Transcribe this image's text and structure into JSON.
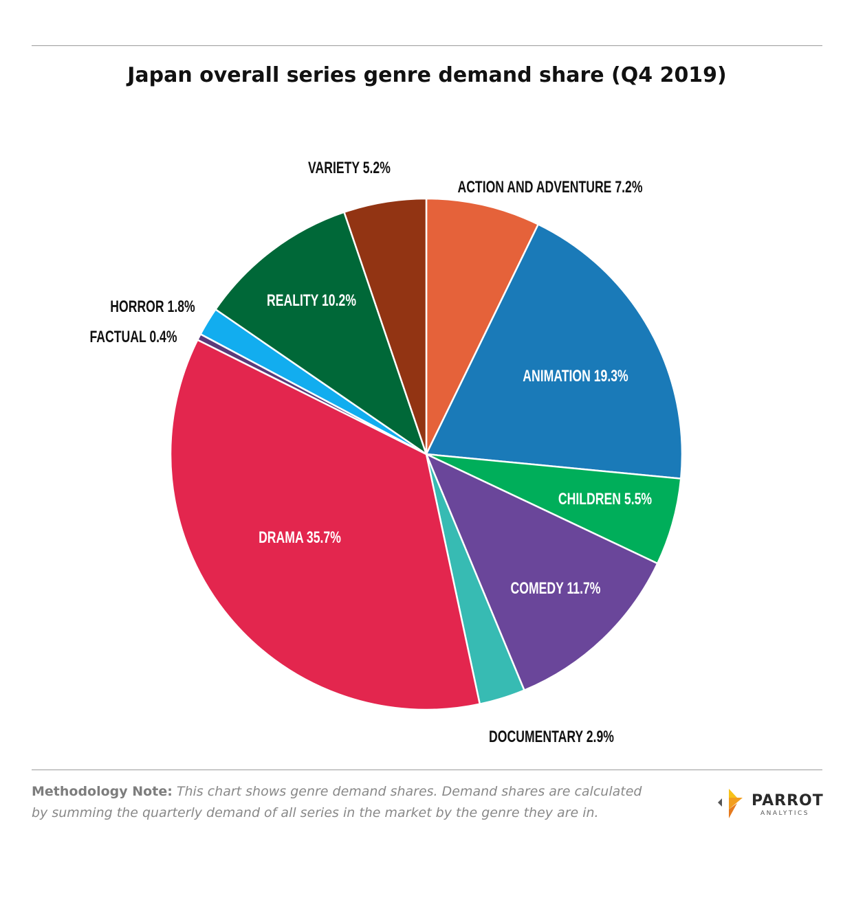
{
  "title": "Japan overall series genre demand share (Q4 2019)",
  "chart_data": {
    "type": "pie",
    "start_angle_deg": 0,
    "direction": "clockwise",
    "slices": [
      {
        "name": "ACTION AND ADVENTURE",
        "value": 7.2,
        "label": "ACTION AND ADVENTURE 7.2%",
        "color": "#E5623A",
        "label_position": "outside",
        "label_color": "#111111"
      },
      {
        "name": "ANIMATION",
        "value": 19.3,
        "label": "ANIMATION 19.3%",
        "color": "#1A7AB8",
        "label_position": "inside",
        "label_color": "#ffffff"
      },
      {
        "name": "CHILDREN",
        "value": 5.5,
        "label": "CHILDREN 5.5%",
        "color": "#00AE5A",
        "label_position": "inside",
        "label_color": "#ffffff"
      },
      {
        "name": "COMEDY",
        "value": 11.7,
        "label": "COMEDY 11.7%",
        "color": "#6A469A",
        "label_position": "inside",
        "label_color": "#ffffff"
      },
      {
        "name": "DOCUMENTARY",
        "value": 2.9,
        "label": "DOCUMENTARY 2.9%",
        "color": "#37BBB3",
        "label_position": "outside",
        "label_color": "#111111"
      },
      {
        "name": "DRAMA",
        "value": 35.7,
        "label": "DRAMA 35.7%",
        "color": "#E3264E",
        "label_position": "inside",
        "label_color": "#ffffff"
      },
      {
        "name": "FACTUAL",
        "value": 0.4,
        "label": "FACTUAL 0.4%",
        "color": "#5B3A7A",
        "label_position": "outside",
        "label_color": "#111111"
      },
      {
        "name": "HORROR",
        "value": 1.8,
        "label": "HORROR 1.8%",
        "color": "#12ADEF",
        "label_position": "outside",
        "label_color": "#111111"
      },
      {
        "name": "REALITY",
        "value": 10.2,
        "label": "REALITY 10.2%",
        "color": "#006838",
        "label_position": "inside",
        "label_color": "#ffffff"
      },
      {
        "name": "VARIETY",
        "value": 5.2,
        "label": "VARIETY 5.2%",
        "color": "#923413",
        "label_position": "outside",
        "label_color": "#111111"
      }
    ]
  },
  "footnote": {
    "lead": "Methodology Note:",
    "body": "This chart shows genre demand shares. Demand shares are calculated by summing the quarterly demand of all series in the market by the genre they are in."
  },
  "logo": {
    "word": "PARROT",
    "sub": "ANALYTICS",
    "colors": [
      "#F7C21A",
      "#F29E1F",
      "#E57A1E",
      "#555555"
    ]
  }
}
